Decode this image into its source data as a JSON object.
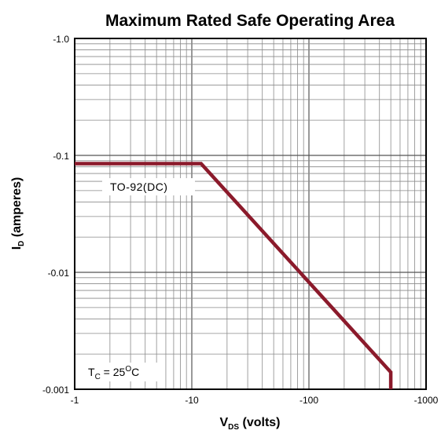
{
  "chart_data": {
    "type": "line",
    "title": "Maximum Rated Safe Operating Area",
    "xlabel": {
      "main": "V",
      "sub": "DS",
      "rest": " (volts)"
    },
    "ylabel": {
      "main": "I",
      "sub": "D",
      "rest": " (amperes)"
    },
    "x_scale": "log",
    "y_scale": "log",
    "xlim": [
      -1,
      -1000
    ],
    "ylim": [
      -0.001,
      -1.0
    ],
    "x_ticks": [
      -1,
      -10,
      -100,
      -1000
    ],
    "x_tick_labels": [
      "-1",
      "-10",
      "-100",
      "-1000"
    ],
    "y_ticks": [
      -0.001,
      -0.01,
      -0.1,
      -1.0
    ],
    "y_tick_labels": [
      "-0.001",
      "-0.01",
      "-0.1",
      "-1.0"
    ],
    "grid": true,
    "series": [
      {
        "name": "TO-92(DC)",
        "color": "#8b1a2b",
        "x": [
          -1,
          -12,
          -500,
          -500
        ],
        "y": [
          -0.085,
          -0.085,
          -0.0014,
          -0.001
        ]
      }
    ],
    "annotations": {
      "series_label": "TO-92(DC)",
      "condition": {
        "main": "T",
        "sub": "C",
        "mid": " = 25",
        "sup": "O",
        "end": "C"
      }
    }
  }
}
